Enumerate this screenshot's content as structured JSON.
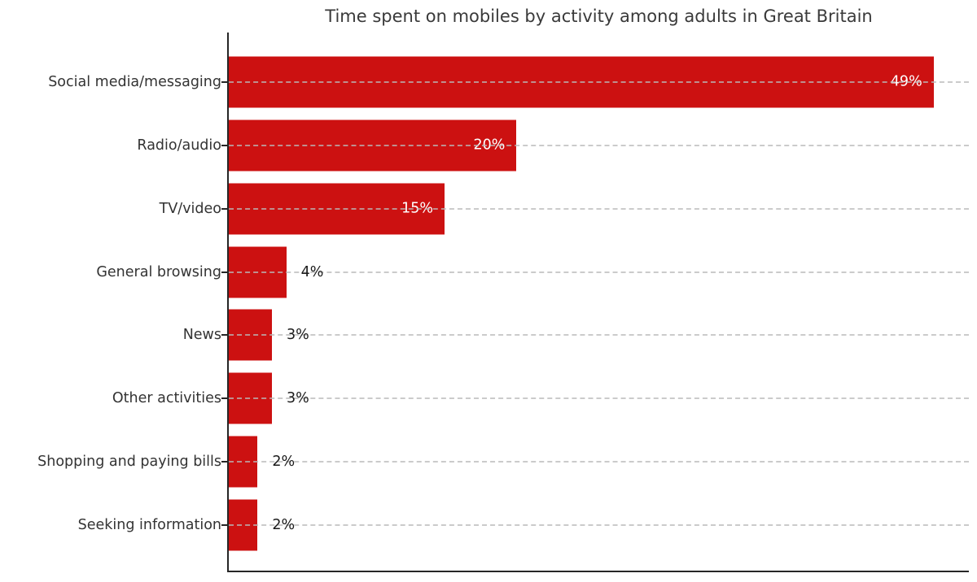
{
  "chart_data": {
    "type": "bar",
    "orientation": "horizontal",
    "title": "Time spent on mobiles by activity among adults in Great Britain",
    "categories": [
      "Social media/messaging",
      "Radio/audio",
      "TV/video",
      "General browsing",
      "News",
      "Other activities",
      "Shopping and paying bills",
      "Seeking information"
    ],
    "values": [
      49,
      20,
      15,
      4,
      3,
      3,
      2,
      2
    ],
    "value_suffix": "%",
    "xlabel": "",
    "ylabel": "",
    "xlim": [
      0,
      51.45
    ],
    "grid": "horizontal dashed per-category, drawn above bars",
    "legend": "none",
    "inside_label_min": 10,
    "colors": {
      "bar": "#cc1111",
      "label_inside": "#ffffff",
      "label_outside": "#1a1a1a",
      "spine": "#262626",
      "gridline": "#bababa",
      "title_text": "#3a3a3a",
      "category_text": "#333333",
      "background": "#ffffff"
    }
  }
}
